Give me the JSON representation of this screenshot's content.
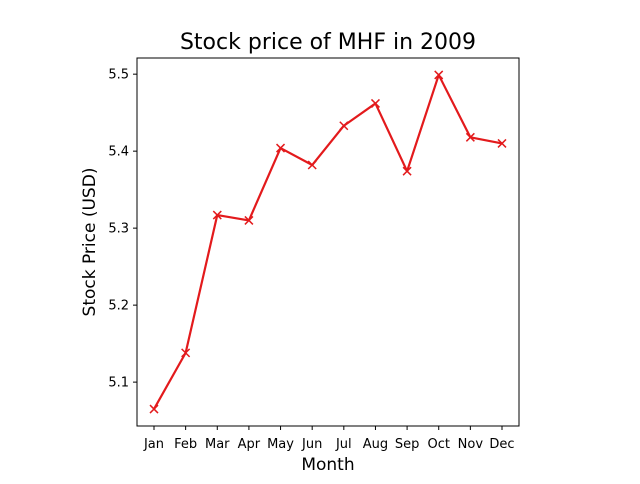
{
  "chart_data": {
    "type": "line",
    "title": "Stock price of MHF in 2009",
    "xlabel": "Month",
    "ylabel": "Stock Price (USD)",
    "categories": [
      "Jan",
      "Feb",
      "Mar",
      "Apr",
      "May",
      "Jun",
      "Jul",
      "Aug",
      "Sep",
      "Oct",
      "Nov",
      "Dec"
    ],
    "series": [
      {
        "values": [
          5.065,
          5.138,
          5.317,
          5.31,
          5.404,
          5.382,
          5.433,
          5.462,
          5.374,
          5.499,
          5.418,
          5.41
        ],
        "color": "#e31a1c",
        "marker": "x"
      }
    ],
    "yticks": [
      "5.1",
      "5.2",
      "5.3",
      "5.4",
      "5.5"
    ],
    "ylim": [
      5.043,
      5.521
    ],
    "grid": false,
    "legend": "none"
  }
}
